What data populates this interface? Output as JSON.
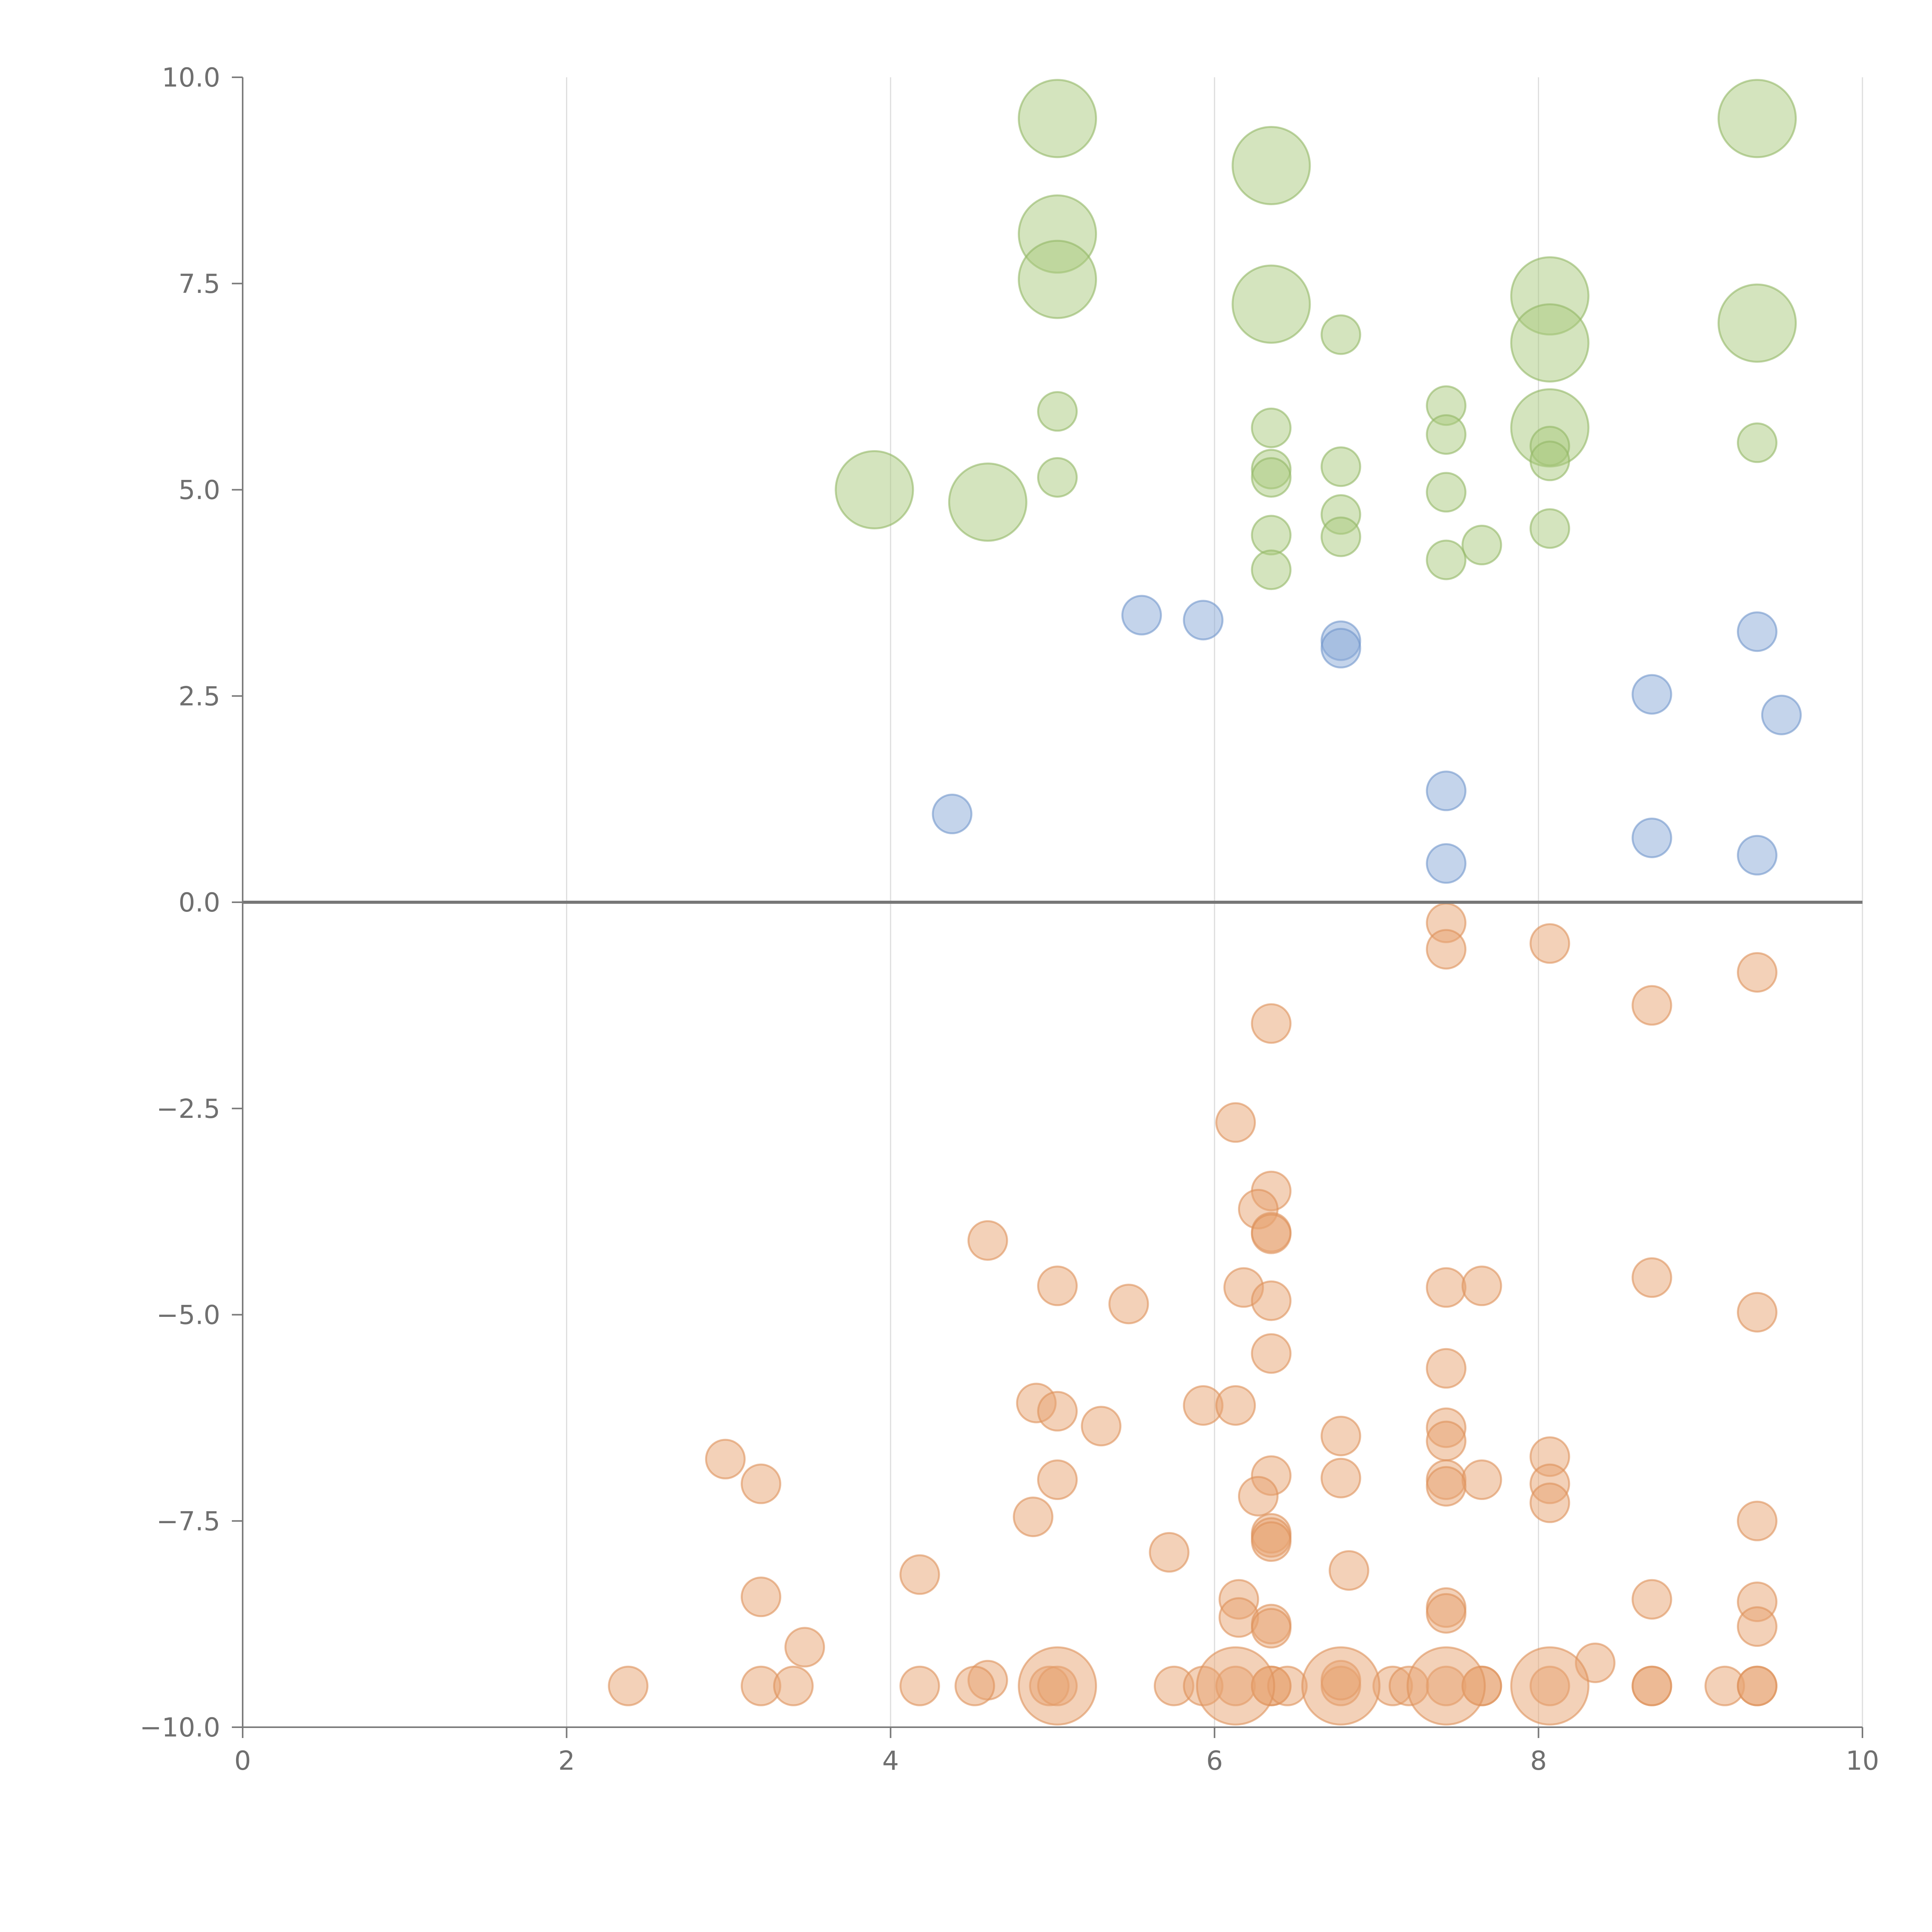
{
  "chart_data": {
    "type": "scatter",
    "title": "",
    "xlabel": "",
    "ylabel": "",
    "xlim": [
      0,
      10
    ],
    "ylim": [
      -10,
      10
    ],
    "x_ticks": [
      "0",
      "2",
      "4",
      "6",
      "8",
      "10"
    ],
    "y_ticks": [
      "−10.0",
      "−7.5",
      "−5.0",
      "−2.5",
      "0.0",
      "2.5",
      "5.0",
      "7.5",
      "10.0"
    ],
    "x_tick_values": [
      0,
      2,
      4,
      6,
      8,
      10
    ],
    "y_tick_values": [
      -10,
      -7.5,
      -5,
      -2.5,
      0,
      2.5,
      5,
      7.5,
      10
    ],
    "grid": "vertical",
    "zero_line": 0,
    "series": [
      {
        "name": "green",
        "color": "#a9c97e",
        "stroke": "#93b866",
        "points": [
          {
            "x": 5.03,
            "y": 9.5,
            "s": 2
          },
          {
            "x": 6.35,
            "y": 8.93,
            "s": 2
          },
          {
            "x": 9.35,
            "y": 9.5,
            "s": 2
          },
          {
            "x": 5.03,
            "y": 8.1,
            "s": 2
          },
          {
            "x": 5.03,
            "y": 7.55,
            "s": 2
          },
          {
            "x": 6.35,
            "y": 7.25,
            "s": 2
          },
          {
            "x": 8.07,
            "y": 7.35,
            "s": 2
          },
          {
            "x": 8.07,
            "y": 6.78,
            "s": 2
          },
          {
            "x": 9.35,
            "y": 7.02,
            "s": 2
          },
          {
            "x": 8.07,
            "y": 5.75,
            "s": 2
          },
          {
            "x": 3.9,
            "y": 5.0,
            "s": 2
          },
          {
            "x": 4.6,
            "y": 4.85,
            "s": 2
          },
          {
            "x": 6.78,
            "y": 6.88,
            "s": 1
          },
          {
            "x": 5.03,
            "y": 5.95,
            "s": 1
          },
          {
            "x": 7.43,
            "y": 6.02,
            "s": 1
          },
          {
            "x": 6.35,
            "y": 5.75,
            "s": 1
          },
          {
            "x": 7.43,
            "y": 5.67,
            "s": 1
          },
          {
            "x": 9.35,
            "y": 5.57,
            "s": 1
          },
          {
            "x": 8.07,
            "y": 5.53,
            "s": 1
          },
          {
            "x": 8.07,
            "y": 5.35,
            "s": 1
          },
          {
            "x": 6.78,
            "y": 5.28,
            "s": 1
          },
          {
            "x": 6.35,
            "y": 5.25,
            "s": 1
          },
          {
            "x": 6.35,
            "y": 5.15,
            "s": 1
          },
          {
            "x": 5.03,
            "y": 5.15,
            "s": 1
          },
          {
            "x": 7.43,
            "y": 4.97,
            "s": 1
          },
          {
            "x": 6.78,
            "y": 4.7,
            "s": 1
          },
          {
            "x": 8.07,
            "y": 4.53,
            "s": 1
          },
          {
            "x": 6.35,
            "y": 4.45,
            "s": 1
          },
          {
            "x": 6.78,
            "y": 4.43,
            "s": 1
          },
          {
            "x": 7.65,
            "y": 4.33,
            "s": 1
          },
          {
            "x": 7.43,
            "y": 4.15,
            "s": 1
          },
          {
            "x": 6.35,
            "y": 4.03,
            "s": 1
          }
        ]
      },
      {
        "name": "blue",
        "color": "#8aaad8",
        "stroke": "#7196cc",
        "points": [
          {
            "x": 5.55,
            "y": 3.48,
            "s": 1
          },
          {
            "x": 5.93,
            "y": 3.42,
            "s": 1
          },
          {
            "x": 6.78,
            "y": 3.17,
            "s": 1
          },
          {
            "x": 6.78,
            "y": 3.08,
            "s": 1
          },
          {
            "x": 9.35,
            "y": 3.28,
            "s": 1
          },
          {
            "x": 8.7,
            "y": 2.52,
            "s": 1
          },
          {
            "x": 9.5,
            "y": 2.27,
            "s": 1
          },
          {
            "x": 4.38,
            "y": 1.07,
            "s": 1
          },
          {
            "x": 7.43,
            "y": 1.35,
            "s": 1
          },
          {
            "x": 8.7,
            "y": 0.78,
            "s": 1
          },
          {
            "x": 9.35,
            "y": 0.57,
            "s": 1
          },
          {
            "x": 7.43,
            "y": 0.47,
            "s": 1
          }
        ]
      },
      {
        "name": "orange",
        "color": "#e8a472",
        "stroke": "#de915a",
        "points": [
          {
            "x": 7.43,
            "y": -0.25,
            "s": 1
          },
          {
            "x": 7.43,
            "y": -0.57,
            "s": 1
          },
          {
            "x": 8.07,
            "y": -0.5,
            "s": 1
          },
          {
            "x": 9.35,
            "y": -0.85,
            "s": 1
          },
          {
            "x": 8.7,
            "y": -1.25,
            "s": 1
          },
          {
            "x": 6.35,
            "y": -1.47,
            "s": 1
          },
          {
            "x": 6.13,
            "y": -2.67,
            "s": 1
          },
          {
            "x": 6.35,
            "y": -3.5,
            "s": 1
          },
          {
            "x": 6.27,
            "y": -3.72,
            "s": 1
          },
          {
            "x": 6.35,
            "y": -4.0,
            "s": 1
          },
          {
            "x": 6.35,
            "y": -4.02,
            "s": 1
          },
          {
            "x": 4.6,
            "y": -4.1,
            "s": 1
          },
          {
            "x": 8.7,
            "y": -4.55,
            "s": 1
          },
          {
            "x": 5.03,
            "y": -4.65,
            "s": 1
          },
          {
            "x": 6.18,
            "y": -4.67,
            "s": 1
          },
          {
            "x": 7.43,
            "y": -4.67,
            "s": 1
          },
          {
            "x": 7.65,
            "y": -4.65,
            "s": 1
          },
          {
            "x": 6.35,
            "y": -4.83,
            "s": 1
          },
          {
            "x": 5.47,
            "y": -4.87,
            "s": 1
          },
          {
            "x": 9.35,
            "y": -4.97,
            "s": 1
          },
          {
            "x": 6.35,
            "y": -5.47,
            "s": 1
          },
          {
            "x": 7.43,
            "y": -5.65,
            "s": 1
          },
          {
            "x": 4.9,
            "y": -6.07,
            "s": 1
          },
          {
            "x": 5.03,
            "y": -6.17,
            "s": 1
          },
          {
            "x": 5.93,
            "y": -6.1,
            "s": 1
          },
          {
            "x": 6.13,
            "y": -6.1,
            "s": 1
          },
          {
            "x": 5.3,
            "y": -6.35,
            "s": 1
          },
          {
            "x": 7.43,
            "y": -6.37,
            "s": 1
          },
          {
            "x": 6.78,
            "y": -6.47,
            "s": 1
          },
          {
            "x": 7.43,
            "y": -6.53,
            "s": 1
          },
          {
            "x": 2.98,
            "y": -6.75,
            "s": 1
          },
          {
            "x": 8.07,
            "y": -6.72,
            "s": 1
          },
          {
            "x": 6.35,
            "y": -6.95,
            "s": 1
          },
          {
            "x": 6.78,
            "y": -6.98,
            "s": 1
          },
          {
            "x": 7.43,
            "y": -7.0,
            "s": 1
          },
          {
            "x": 7.65,
            "y": -7.0,
            "s": 1
          },
          {
            "x": 5.03,
            "y": -7.0,
            "s": 1
          },
          {
            "x": 3.2,
            "y": -7.05,
            "s": 1
          },
          {
            "x": 7.43,
            "y": -7.08,
            "s": 1
          },
          {
            "x": 8.07,
            "y": -7.05,
            "s": 1
          },
          {
            "x": 6.27,
            "y": -7.2,
            "s": 1
          },
          {
            "x": 8.07,
            "y": -7.28,
            "s": 1
          },
          {
            "x": 4.88,
            "y": -7.45,
            "s": 1
          },
          {
            "x": 9.35,
            "y": -7.5,
            "s": 1
          },
          {
            "x": 6.35,
            "y": -7.65,
            "s": 1
          },
          {
            "x": 6.35,
            "y": -7.7,
            "s": 1
          },
          {
            "x": 6.35,
            "y": -7.75,
            "s": 1
          },
          {
            "x": 5.72,
            "y": -7.88,
            "s": 1
          },
          {
            "x": 6.83,
            "y": -8.1,
            "s": 1
          },
          {
            "x": 4.18,
            "y": -8.15,
            "s": 1
          },
          {
            "x": 3.2,
            "y": -8.42,
            "s": 1
          },
          {
            "x": 6.15,
            "y": -8.45,
            "s": 1
          },
          {
            "x": 8.7,
            "y": -8.45,
            "s": 1
          },
          {
            "x": 9.35,
            "y": -8.48,
            "s": 1
          },
          {
            "x": 7.43,
            "y": -8.55,
            "s": 1
          },
          {
            "x": 7.43,
            "y": -8.62,
            "s": 1
          },
          {
            "x": 6.15,
            "y": -8.67,
            "s": 1
          },
          {
            "x": 6.35,
            "y": -8.75,
            "s": 1
          },
          {
            "x": 6.35,
            "y": -8.8,
            "s": 1
          },
          {
            "x": 9.35,
            "y": -8.78,
            "s": 1
          },
          {
            "x": 3.47,
            "y": -9.03,
            "s": 1
          },
          {
            "x": 8.35,
            "y": -9.22,
            "s": 1
          },
          {
            "x": 4.6,
            "y": -9.43,
            "s": 1
          },
          {
            "x": 2.38,
            "y": -9.5,
            "s": 1
          },
          {
            "x": 3.2,
            "y": -9.5,
            "s": 1
          },
          {
            "x": 3.4,
            "y": -9.5,
            "s": 1
          },
          {
            "x": 4.18,
            "y": -9.5,
            "s": 1
          },
          {
            "x": 4.52,
            "y": -9.5,
            "s": 1
          },
          {
            "x": 4.98,
            "y": -9.5,
            "s": 1
          },
          {
            "x": 5.03,
            "y": -9.5,
            "s": 1
          },
          {
            "x": 5.75,
            "y": -9.5,
            "s": 1
          },
          {
            "x": 5.93,
            "y": -9.5,
            "s": 1
          },
          {
            "x": 6.13,
            "y": -9.5,
            "s": 1
          },
          {
            "x": 6.35,
            "y": -9.5,
            "s": 1
          },
          {
            "x": 6.35,
            "y": -9.5,
            "s": 1
          },
          {
            "x": 6.45,
            "y": -9.5,
            "s": 1
          },
          {
            "x": 6.78,
            "y": -9.5,
            "s": 1
          },
          {
            "x": 6.78,
            "y": -9.43,
            "s": 1
          },
          {
            "x": 7.1,
            "y": -9.5,
            "s": 1
          },
          {
            "x": 7.2,
            "y": -9.5,
            "s": 1
          },
          {
            "x": 7.43,
            "y": -9.5,
            "s": 1
          },
          {
            "x": 7.65,
            "y": -9.5,
            "s": 1
          },
          {
            "x": 7.65,
            "y": -9.5,
            "s": 1
          },
          {
            "x": 8.07,
            "y": -9.5,
            "s": 1
          },
          {
            "x": 8.7,
            "y": -9.5,
            "s": 1
          },
          {
            "x": 8.7,
            "y": -9.5,
            "s": 1
          },
          {
            "x": 9.15,
            "y": -9.5,
            "s": 1
          },
          {
            "x": 9.35,
            "y": -9.5,
            "s": 1
          },
          {
            "x": 9.35,
            "y": -9.5,
            "s": 1
          },
          {
            "x": 5.03,
            "y": -9.5,
            "s": 2
          },
          {
            "x": 6.13,
            "y": -9.5,
            "s": 2
          },
          {
            "x": 6.78,
            "y": -9.5,
            "s": 2
          },
          {
            "x": 7.43,
            "y": -9.5,
            "s": 2
          },
          {
            "x": 8.07,
            "y": -9.5,
            "s": 2
          }
        ]
      }
    ]
  }
}
